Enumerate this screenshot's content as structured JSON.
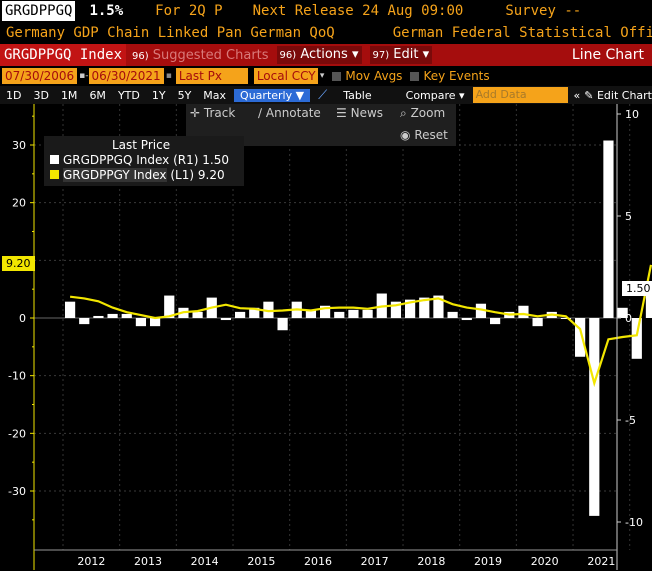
{
  "header": {
    "ticker": "GRGDPPGQ",
    "value": "1.5%",
    "period": "For 2Q P",
    "next_release": "Next Release 24 Aug 09:00",
    "survey": "Survey --",
    "description": "Germany GDP Chain Linked Pan German QoQ",
    "source": "German Federal Statistical Office"
  },
  "toolbar": {
    "index_label": "GRGDPPGQ Index",
    "suggested_num": "96)",
    "suggested_label": "Suggested Charts",
    "actions_num": "96)",
    "actions_label": "Actions",
    "edit_num": "97)",
    "edit_label": "Edit",
    "chart_type": "Line Chart"
  },
  "controls": {
    "start_date": "07/30/2006",
    "end_date": "06/30/2021",
    "price_field": "Last Px",
    "currency": "Local CCY",
    "mov_avgs": "Mov Avgs",
    "key_events": "Key Events"
  },
  "ranges": [
    "1D",
    "3D",
    "1M",
    "6M",
    "YTD",
    "1Y",
    "5Y",
    "Max"
  ],
  "periodicity": "Quarterly",
  "table_label": "Table",
  "compare_label": "Compare",
  "add_data_placeholder": "Add Data",
  "edit_chart_label": "Edit Chart",
  "chart_tools": {
    "track": "Track",
    "annotate": "Annotate",
    "news": "News",
    "zoom": "Zoom",
    "reset": "Reset"
  },
  "legend": {
    "title": "Last Price",
    "series": [
      {
        "name": "GRGDPPGQ Index",
        "axis": "(R1)",
        "value": "1.50",
        "color": "#ffffff"
      },
      {
        "name": "GRGDPPGY Index",
        "axis": "(L1)",
        "value": "9.20",
        "color": "#f2e600"
      }
    ]
  },
  "last_value_tags": {
    "left": "9.20",
    "right": "1.50"
  },
  "colors": {
    "accent": "#f5a31a",
    "toolbar_red": "#a50d0d",
    "yoy_line": "#f2e600",
    "qoq_bar": "#ffffff",
    "selected": "#2c6bd6"
  },
  "chart_data": {
    "type": "bar",
    "x_labels": [
      "2012",
      "2013",
      "2014",
      "2015",
      "2016",
      "2017",
      "2018",
      "2019",
      "2020",
      "2021"
    ],
    "left_axis": {
      "ticks": [
        30,
        20,
        10,
        0,
        -10,
        -20,
        -30
      ],
      "range": [
        -40,
        38
      ]
    },
    "right_axis": {
      "ticks": [
        10,
        5,
        0,
        -5,
        -10
      ],
      "range": [
        -11.3,
        10.3
      ]
    },
    "series": [
      {
        "name": "GRGDPPGQ Index",
        "axis": "right",
        "kind": "bar",
        "values": [
          0.8,
          -0.3,
          0.1,
          0.2,
          0.2,
          -0.4,
          -0.4,
          1.1,
          0.5,
          0.3,
          1.0,
          -0.1,
          0.3,
          0.5,
          0.8,
          -0.6,
          0.8,
          0.4,
          0.6,
          0.3,
          0.4,
          0.4,
          1.2,
          0.8,
          0.9,
          1.0,
          1.1,
          0.3,
          -0.1,
          0.7,
          -0.3,
          0.3,
          0.6,
          -0.4,
          0.3,
          0.0,
          -1.9,
          -9.7,
          8.7,
          0.5,
          -2.0,
          1.5
        ]
      },
      {
        "name": "GRGDPPGY Index",
        "axis": "left",
        "kind": "line",
        "values": [
          3.7,
          3.4,
          2.9,
          1.8,
          1.0,
          0.5,
          0.0,
          0.3,
          1.0,
          1.2,
          1.8,
          2.3,
          1.7,
          1.6,
          1.2,
          1.3,
          1.5,
          1.3,
          1.7,
          1.8,
          1.8,
          1.6,
          2.0,
          2.2,
          2.7,
          3.1,
          3.4,
          2.4,
          1.8,
          1.5,
          1.0,
          0.6,
          0.7,
          0.3,
          0.6,
          0.3,
          -1.9,
          -11.3,
          -3.7,
          -3.3,
          -3.0,
          9.2
        ]
      }
    ]
  }
}
